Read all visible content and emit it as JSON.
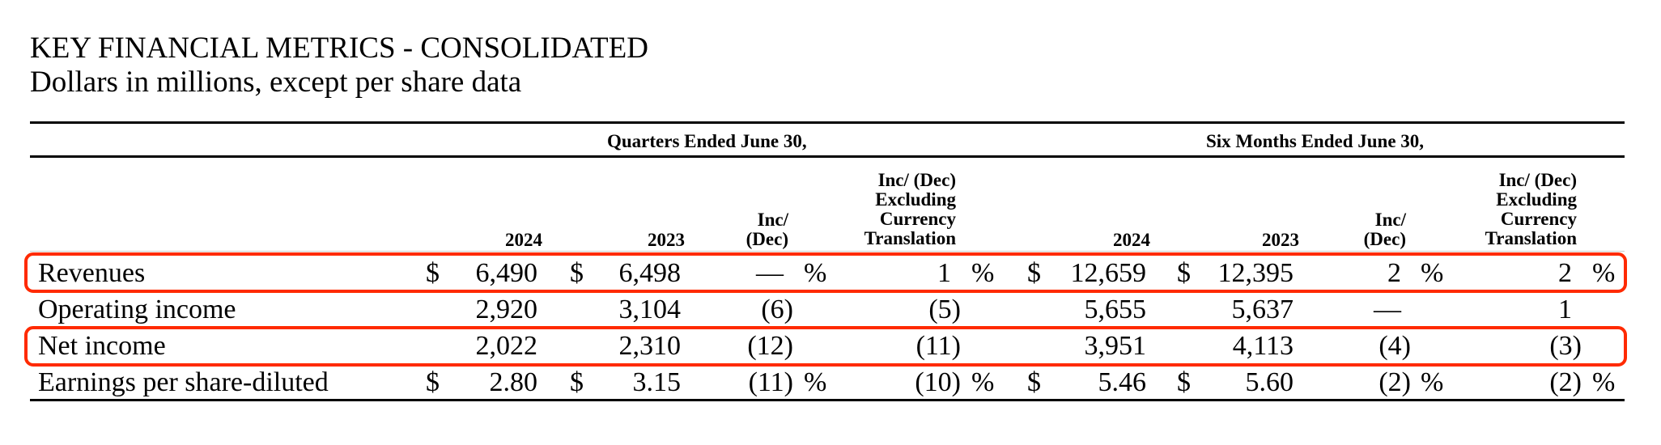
{
  "title": "KEY FINANCIAL METRICS - CONSOLIDATED",
  "subtitle": "Dollars in millions, except per share data",
  "groups": {
    "quarters": "Quarters Ended June 30,",
    "six_months": "Six Months Ended June 30,"
  },
  "columns": {
    "q_2024": "2024",
    "q_2023": "2023",
    "q_inc_1": "Inc/",
    "q_inc_2": "(Dec)",
    "q_excl_1": "Inc/ (Dec)",
    "q_excl_2": "Excluding",
    "q_excl_3": "Currency",
    "q_excl_4": "Translation",
    "s_2024": "2024",
    "s_2023": "2023",
    "s_inc_1": "Inc/",
    "s_inc_2": "(Dec)",
    "s_excl_1": "Inc/ (Dec)",
    "s_excl_2": "Excluding",
    "s_excl_3": "Currency",
    "s_excl_4": "Translation"
  },
  "highlight_color": "#ff2a00",
  "rows": [
    {
      "label": "Revenues",
      "d1": "$",
      "q2024": "6,490",
      "d2": "$",
      "q2023": "6,498",
      "qinc": "—",
      "p1": "%",
      "qexcl": "1",
      "p2": "%",
      "d3": "$",
      "s2024": "12,659",
      "d4": "$",
      "s2023": "12,395",
      "sinc": "2",
      "p3": "%",
      "sexcl": "2",
      "p4": "%",
      "highlighted": true
    },
    {
      "label": "Operating income",
      "q2024": "2,920",
      "q2023": "3,104",
      "qinc": "(6)",
      "qexcl": "(5)",
      "s2024": "5,655",
      "s2023": "5,637",
      "sinc": "—",
      "sexcl": "1",
      "highlighted": false
    },
    {
      "label": "Net income",
      "q2024": "2,022",
      "q2023": "2,310",
      "qinc": "(12)",
      "qexcl": "(11)",
      "s2024": "3,951",
      "s2023": "4,113",
      "sinc": "(4)",
      "sexcl": "(3)",
      "highlighted": true
    },
    {
      "label": "Earnings per share-diluted",
      "d1": "$",
      "q2024": "2.80",
      "d2": "$",
      "q2023": "3.15",
      "qinc": "(11)",
      "p1": "%",
      "qexcl": "(10)",
      "p2": "%",
      "d3": "$",
      "s2024": "5.46",
      "d4": "$",
      "s2023": "5.60",
      "sinc": "(2)",
      "p3": "%",
      "sexcl": "(2)",
      "p4": "%",
      "highlighted": false
    }
  ]
}
